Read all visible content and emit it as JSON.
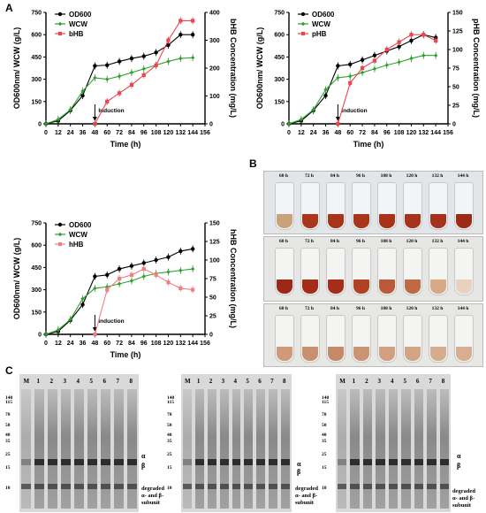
{
  "panel_labels": {
    "a": "A",
    "b": "B",
    "c": "C"
  },
  "chart_data": [
    {
      "type": "line",
      "xlabel": "Time (h)",
      "ylabel_left": "OD600nm/ WCW (g/L)",
      "ylabel_right": "bHB Concentration (mg/L)",
      "x_ticks": [
        0,
        12,
        24,
        36,
        48,
        60,
        72,
        84,
        96,
        108,
        120,
        132,
        144,
        156
      ],
      "y_left_ticks": [
        0,
        150,
        300,
        450,
        600,
        750
      ],
      "y_right_ticks": [
        0,
        100,
        200,
        300,
        400
      ],
      "xlim": [
        0,
        156
      ],
      "ylim_left": [
        0,
        750
      ],
      "ylim_right": [
        0,
        400
      ],
      "legend": [
        "OD600",
        "WCW",
        "bHB"
      ],
      "annotation": "Induction",
      "induction_x": 48,
      "series": [
        {
          "name": "OD600",
          "axis": "left",
          "color": "#000000",
          "x": [
            0,
            12,
            24,
            36,
            48,
            60,
            72,
            84,
            96,
            108,
            120,
            132,
            144
          ],
          "y": [
            0,
            20,
            90,
            190,
            390,
            395,
            420,
            440,
            455,
            480,
            530,
            600,
            600
          ]
        },
        {
          "name": "WCW",
          "axis": "left",
          "color": "#2ca02c",
          "x": [
            0,
            12,
            24,
            36,
            48,
            60,
            72,
            84,
            96,
            108,
            120,
            132,
            144
          ],
          "y": [
            0,
            30,
            95,
            220,
            310,
            300,
            320,
            345,
            370,
            395,
            420,
            440,
            445
          ]
        },
        {
          "name": "bHB",
          "axis": "right",
          "color": "#e8474f",
          "x": [
            48,
            60,
            72,
            84,
            96,
            108,
            120,
            132,
            144
          ],
          "y": [
            0,
            80,
            110,
            140,
            175,
            210,
            300,
            370,
            370
          ]
        }
      ]
    },
    {
      "type": "line",
      "xlabel": "Time (h)",
      "ylabel_left": "OD600nm/ WCW (g/L)",
      "ylabel_right": "pHB Concentration (mg/L)",
      "x_ticks": [
        0,
        12,
        24,
        36,
        48,
        60,
        72,
        84,
        96,
        108,
        120,
        132,
        144,
        156
      ],
      "y_left_ticks": [
        0,
        150,
        300,
        450,
        600,
        750
      ],
      "y_right_ticks": [
        0,
        25,
        50,
        75,
        100,
        125,
        150
      ],
      "xlim": [
        0,
        156
      ],
      "ylim_left": [
        0,
        750
      ],
      "ylim_right": [
        0,
        150
      ],
      "legend": [
        "OD600",
        "WCW",
        "pHB"
      ],
      "annotation": "Induction",
      "induction_x": 48,
      "series": [
        {
          "name": "OD600",
          "axis": "left",
          "color": "#000000",
          "x": [
            0,
            12,
            24,
            36,
            48,
            60,
            72,
            84,
            96,
            108,
            120,
            132,
            144
          ],
          "y": [
            0,
            20,
            90,
            190,
            390,
            400,
            430,
            460,
            490,
            520,
            560,
            600,
            580
          ]
        },
        {
          "name": "WCW",
          "axis": "left",
          "color": "#2ca02c",
          "x": [
            0,
            12,
            24,
            36,
            48,
            60,
            72,
            84,
            96,
            108,
            120,
            132,
            144
          ],
          "y": [
            0,
            30,
            95,
            230,
            310,
            320,
            345,
            370,
            395,
            415,
            440,
            460,
            460
          ]
        },
        {
          "name": "pHB",
          "axis": "right",
          "color": "#e8474f",
          "x": [
            48,
            60,
            72,
            84,
            96,
            108,
            120,
            132,
            144
          ],
          "y": [
            0,
            55,
            75,
            85,
            100,
            110,
            120,
            120,
            112
          ]
        }
      ]
    },
    {
      "type": "line",
      "xlabel": "Time (h)",
      "ylabel_left": "OD600nm/ WCW (g/L)",
      "ylabel_right": "hHB Concentration (mg/L)",
      "x_ticks": [
        0,
        12,
        24,
        36,
        48,
        60,
        72,
        84,
        96,
        108,
        120,
        132,
        144,
        156
      ],
      "y_left_ticks": [
        0,
        150,
        300,
        450,
        600,
        750
      ],
      "y_right_ticks": [
        0,
        25,
        50,
        75,
        100,
        125,
        150
      ],
      "xlim": [
        0,
        156
      ],
      "ylim_left": [
        0,
        750
      ],
      "ylim_right": [
        0,
        150
      ],
      "legend": [
        "OD600",
        "WCW",
        "hHB"
      ],
      "annotation": "Induction",
      "induction_x": 48,
      "series": [
        {
          "name": "OD600",
          "axis": "left",
          "color": "#000000",
          "x": [
            0,
            12,
            24,
            36,
            48,
            60,
            72,
            84,
            96,
            108,
            120,
            132,
            144
          ],
          "y": [
            0,
            20,
            95,
            200,
            390,
            400,
            440,
            460,
            480,
            500,
            520,
            560,
            575
          ]
        },
        {
          "name": "WCW",
          "axis": "left",
          "color": "#2ca02c",
          "x": [
            0,
            12,
            24,
            36,
            48,
            60,
            72,
            84,
            96,
            108,
            120,
            132,
            144
          ],
          "y": [
            0,
            30,
            100,
            240,
            310,
            320,
            340,
            360,
            390,
            410,
            420,
            430,
            440
          ]
        },
        {
          "name": "hHB",
          "axis": "right",
          "color": "#f08080",
          "x": [
            48,
            60,
            72,
            84,
            96,
            108,
            120,
            132,
            144
          ],
          "y": [
            0,
            60,
            75,
            80,
            88,
            80,
            70,
            62,
            60
          ]
        }
      ]
    }
  ],
  "tubes": {
    "time_labels": [
      "60 h",
      "72 h",
      "84 h",
      "96 h",
      "108 h",
      "120 h",
      "132 h",
      "144 h"
    ],
    "rows": [
      {
        "colors": [
          "#c9a27a",
          "#a8371b",
          "#a8341a",
          "#a9351a",
          "#a8331a",
          "#a7331b",
          "#a5321c",
          "#9c2a17"
        ]
      },
      {
        "colors": [
          "#9e2818",
          "#a32c19",
          "#a52e1a",
          "#b04124",
          "#bb5a3a",
          "#c06a45",
          "#d9a888",
          "#e8d1c0"
        ]
      },
      {
        "colors": [
          "#cf9a78",
          "#c99070",
          "#c78a68",
          "#ca9472",
          "#d0a080",
          "#d2a586",
          "#d6ab8e",
          "#d8ae92"
        ]
      }
    ]
  },
  "gels": {
    "lane_labels": [
      "M",
      "1",
      "2",
      "3",
      "4",
      "5",
      "6",
      "7",
      "8"
    ],
    "marker_kda": [
      "140",
      "115",
      "70",
      "50",
      "40",
      "35",
      "25",
      "15",
      "10"
    ],
    "band_labels": {
      "alpha": "α",
      "beta": "β",
      "degraded_1": "degraded",
      "degraded_2": "α- and β-",
      "degraded_3": "subunit"
    }
  }
}
